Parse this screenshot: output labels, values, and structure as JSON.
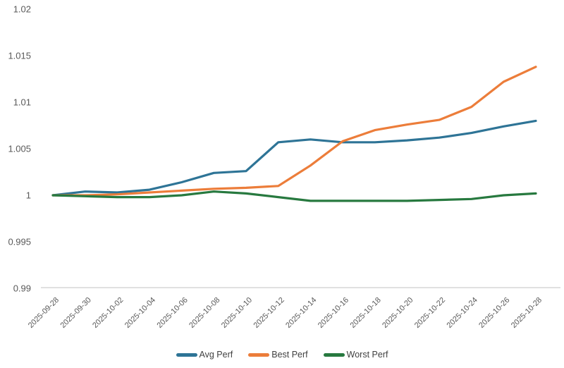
{
  "chart_data": {
    "type": "line",
    "title": "",
    "xlabel": "",
    "ylabel": "",
    "categories": [
      "2025-09-28",
      "2025-09-30",
      "2025-10-02",
      "2025-10-04",
      "2025-10-06",
      "2025-10-08",
      "2025-10-10",
      "2025-10-12",
      "2025-10-14",
      "2025-10-16",
      "2025-10-18",
      "2025-10-20",
      "2025-10-22",
      "2025-10-24",
      "2025-10-26",
      "2025-10-28"
    ],
    "series": [
      {
        "name": "Avg Perf",
        "color": "#2e7496",
        "values": [
          1.0,
          1.0004,
          1.0003,
          1.0006,
          1.0014,
          1.0024,
          1.0026,
          1.0057,
          1.006,
          1.0057,
          1.0057,
          1.0059,
          1.0062,
          1.0067,
          1.0074,
          1.008
        ]
      },
      {
        "name": "Best Perf",
        "color": "#ec7d3a",
        "values": [
          1.0,
          1.0,
          1.0001,
          1.0003,
          1.0005,
          1.0007,
          1.0008,
          1.001,
          1.0032,
          1.0058,
          1.007,
          1.0076,
          1.0081,
          1.0095,
          1.0122,
          1.0138
        ]
      },
      {
        "name": "Worst Perf",
        "color": "#27793f",
        "values": [
          1.0,
          0.9999,
          0.9998,
          0.9998,
          1.0,
          1.0004,
          1.0002,
          0.9998,
          0.9994,
          0.9994,
          0.9994,
          0.9994,
          0.9995,
          0.9996,
          1.0,
          1.0002
        ]
      }
    ],
    "ylim": [
      0.99,
      1.02
    ],
    "yticks": [
      0.99,
      0.995,
      1,
      1.005,
      1.01,
      1.015,
      1.02
    ],
    "ytick_labels": [
      "0.99",
      "0.995",
      "1",
      "1.005",
      "1.01",
      "1.015",
      "1.02"
    ],
    "grid": false,
    "legend_position": "bottom",
    "axis_line_color": "#d6d6d6",
    "tick_label_color": "#595959",
    "legend_text_color": "#404040",
    "line_width": 3.2
  }
}
